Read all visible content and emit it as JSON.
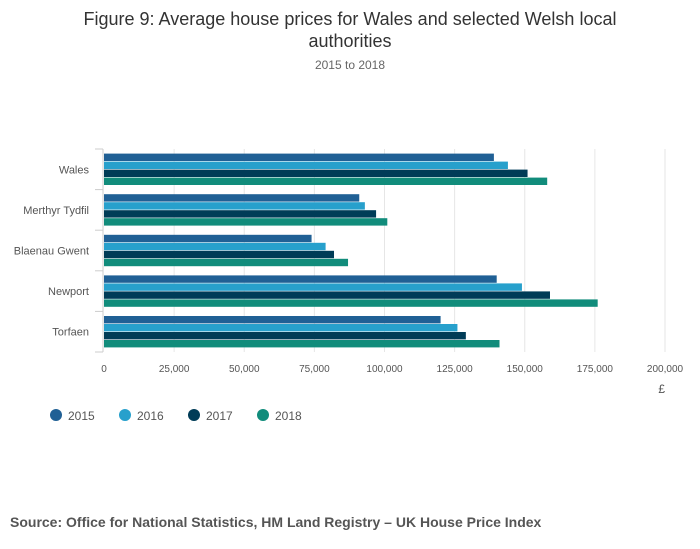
{
  "chart_data": {
    "type": "bar",
    "orientation": "horizontal",
    "title": "Figure 9: Average house prices for Wales and selected Welsh local authorities",
    "title_lines": [
      "Figure 9: Average house prices for Wales and selected Welsh local",
      "authorities"
    ],
    "subtitle": "2015 to 2018",
    "categories": [
      "Wales",
      "Merthyr Tydfil",
      "Blaenau Gwent",
      "Newport",
      "Torfaen"
    ],
    "series": [
      {
        "name": "2015",
        "color": "#206095",
        "values": [
          139000,
          91000,
          74000,
          140000,
          120000
        ]
      },
      {
        "name": "2016",
        "color": "#27a0cc",
        "values": [
          144000,
          93000,
          79000,
          149000,
          126000
        ]
      },
      {
        "name": "2017",
        "color": "#003c57",
        "values": [
          151000,
          97000,
          82000,
          159000,
          129000
        ]
      },
      {
        "name": "2018",
        "color": "#118c7b",
        "values": [
          158000,
          101000,
          87000,
          176000,
          141000
        ]
      }
    ],
    "xlim": [
      0,
      200000
    ],
    "xticks": [
      0,
      25000,
      50000,
      75000,
      100000,
      125000,
      150000,
      175000,
      200000
    ],
    "xtick_labels": [
      "0",
      "25,000",
      "50,000",
      "75,000",
      "100,000",
      "125,000",
      "150,000",
      "175,000",
      "200,000"
    ],
    "xlabel": "£",
    "ylabel": "",
    "grid": true,
    "legend_position": "bottom-left"
  },
  "source": "Source: Office for National Statistics, HM Land Registry – UK House Price Index"
}
